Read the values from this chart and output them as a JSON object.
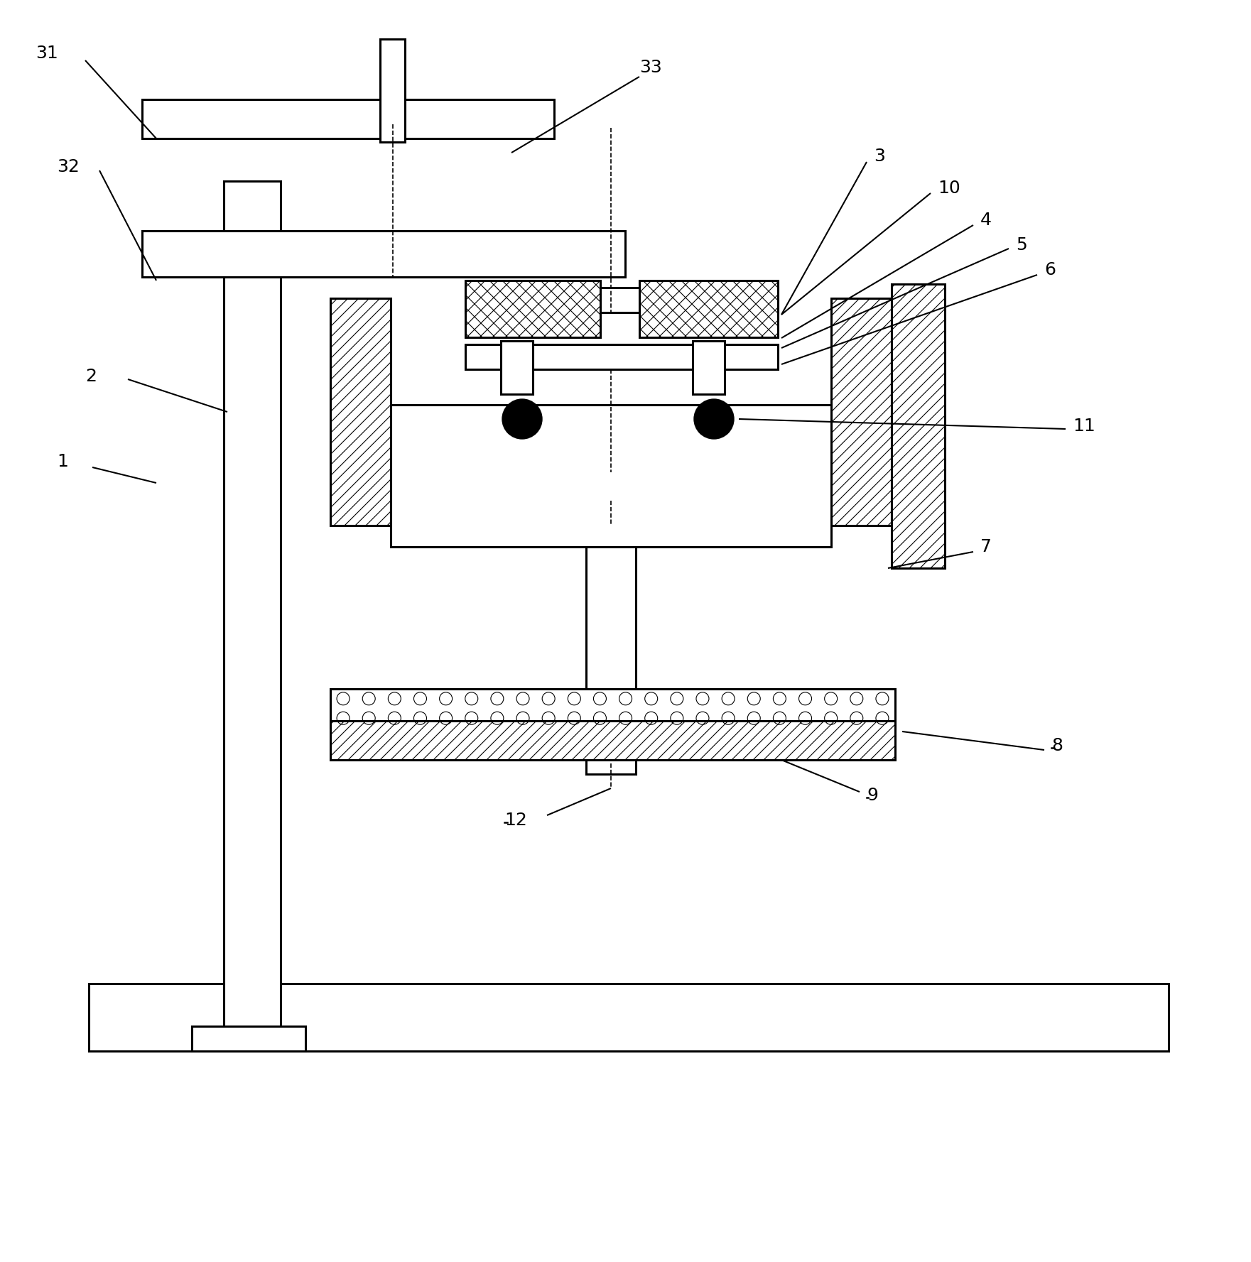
{
  "bg_color": "#ffffff",
  "lc": "#000000",
  "lw": 2.2,
  "thin": 0.8,
  "font_size": 18
}
